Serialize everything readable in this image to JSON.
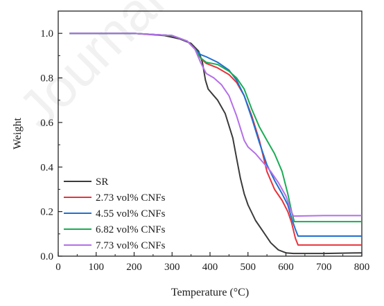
{
  "chart_data": {
    "type": "line",
    "xlabel": "Temperature (°C)",
    "ylabel": "Weight",
    "xlim": [
      0,
      800
    ],
    "ylim": [
      0.0,
      1.1
    ],
    "xticks": [
      0,
      100,
      200,
      300,
      400,
      500,
      600,
      700,
      800
    ],
    "yticks": [
      0.0,
      0.2,
      0.4,
      0.6,
      0.8,
      1.0
    ],
    "xtick_labels": [
      "0",
      "100",
      "200",
      "300",
      "400",
      "500",
      "600",
      "700",
      "800"
    ],
    "ytick_labels": [
      "0.0",
      "0.2",
      "0.4",
      "0.6",
      "0.8",
      "1.0"
    ],
    "grid": false,
    "legend_position": "bottom-left",
    "series": [
      {
        "name": "SR",
        "color": "#3a3a3a",
        "points": [
          [
            30,
            1.0
          ],
          [
            100,
            1.0
          ],
          [
            200,
            1.0
          ],
          [
            280,
            0.99
          ],
          [
            320,
            0.975
          ],
          [
            350,
            0.955
          ],
          [
            370,
            0.92
          ],
          [
            380,
            0.87
          ],
          [
            388,
            0.79
          ],
          [
            395,
            0.75
          ],
          [
            410,
            0.72
          ],
          [
            420,
            0.7
          ],
          [
            440,
            0.64
          ],
          [
            460,
            0.53
          ],
          [
            470,
            0.44
          ],
          [
            480,
            0.35
          ],
          [
            490,
            0.28
          ],
          [
            500,
            0.23
          ],
          [
            520,
            0.16
          ],
          [
            540,
            0.11
          ],
          [
            560,
            0.06
          ],
          [
            580,
            0.028
          ],
          [
            600,
            0.015
          ],
          [
            620,
            0.012
          ],
          [
            700,
            0.012
          ],
          [
            800,
            0.015
          ]
        ]
      },
      {
        "name": "2.73 vol% CNFs",
        "color": "#e8323a",
        "points": [
          [
            30,
            1.0
          ],
          [
            200,
            1.0
          ],
          [
            300,
            0.99
          ],
          [
            340,
            0.965
          ],
          [
            360,
            0.93
          ],
          [
            375,
            0.89
          ],
          [
            390,
            0.865
          ],
          [
            420,
            0.845
          ],
          [
            450,
            0.815
          ],
          [
            470,
            0.78
          ],
          [
            490,
            0.72
          ],
          [
            510,
            0.63
          ],
          [
            530,
            0.52
          ],
          [
            550,
            0.38
          ],
          [
            570,
            0.3
          ],
          [
            590,
            0.25
          ],
          [
            605,
            0.2
          ],
          [
            615,
            0.15
          ],
          [
            625,
            0.08
          ],
          [
            632,
            0.05
          ],
          [
            700,
            0.05
          ],
          [
            800,
            0.05
          ]
        ]
      },
      {
        "name": "4.55 vol% CNFs",
        "color": "#1f6fd1",
        "points": [
          [
            30,
            1.0
          ],
          [
            200,
            1.0
          ],
          [
            300,
            0.99
          ],
          [
            340,
            0.965
          ],
          [
            360,
            0.93
          ],
          [
            375,
            0.905
          ],
          [
            390,
            0.895
          ],
          [
            420,
            0.87
          ],
          [
            450,
            0.835
          ],
          [
            470,
            0.79
          ],
          [
            490,
            0.72
          ],
          [
            510,
            0.62
          ],
          [
            530,
            0.51
          ],
          [
            550,
            0.41
          ],
          [
            570,
            0.34
          ],
          [
            590,
            0.28
          ],
          [
            605,
            0.23
          ],
          [
            615,
            0.17
          ],
          [
            625,
            0.12
          ],
          [
            632,
            0.09
          ],
          [
            700,
            0.09
          ],
          [
            800,
            0.09
          ]
        ]
      },
      {
        "name": "6.82 vol% CNFs",
        "color": "#1aab55",
        "points": [
          [
            30,
            1.0
          ],
          [
            200,
            1.0
          ],
          [
            300,
            0.99
          ],
          [
            340,
            0.965
          ],
          [
            360,
            0.93
          ],
          [
            375,
            0.89
          ],
          [
            390,
            0.87
          ],
          [
            420,
            0.86
          ],
          [
            450,
            0.83
          ],
          [
            470,
            0.8
          ],
          [
            490,
            0.75
          ],
          [
            510,
            0.66
          ],
          [
            530,
            0.58
          ],
          [
            550,
            0.52
          ],
          [
            570,
            0.46
          ],
          [
            590,
            0.38
          ],
          [
            605,
            0.28
          ],
          [
            615,
            0.2
          ],
          [
            622,
            0.155
          ],
          [
            700,
            0.155
          ],
          [
            800,
            0.155
          ]
        ]
      },
      {
        "name": "7.73 vol% CNFs",
        "color": "#b46ee8",
        "points": [
          [
            30,
            1.0
          ],
          [
            200,
            1.0
          ],
          [
            300,
            0.99
          ],
          [
            340,
            0.965
          ],
          [
            360,
            0.93
          ],
          [
            375,
            0.87
          ],
          [
            390,
            0.82
          ],
          [
            410,
            0.8
          ],
          [
            430,
            0.77
          ],
          [
            450,
            0.72
          ],
          [
            470,
            0.63
          ],
          [
            490,
            0.52
          ],
          [
            500,
            0.49
          ],
          [
            520,
            0.46
          ],
          [
            540,
            0.42
          ],
          [
            560,
            0.38
          ],
          [
            580,
            0.33
          ],
          [
            600,
            0.27
          ],
          [
            610,
            0.22
          ],
          [
            617,
            0.19
          ],
          [
            620,
            0.18
          ],
          [
            700,
            0.182
          ],
          [
            800,
            0.182
          ]
        ]
      }
    ]
  }
}
